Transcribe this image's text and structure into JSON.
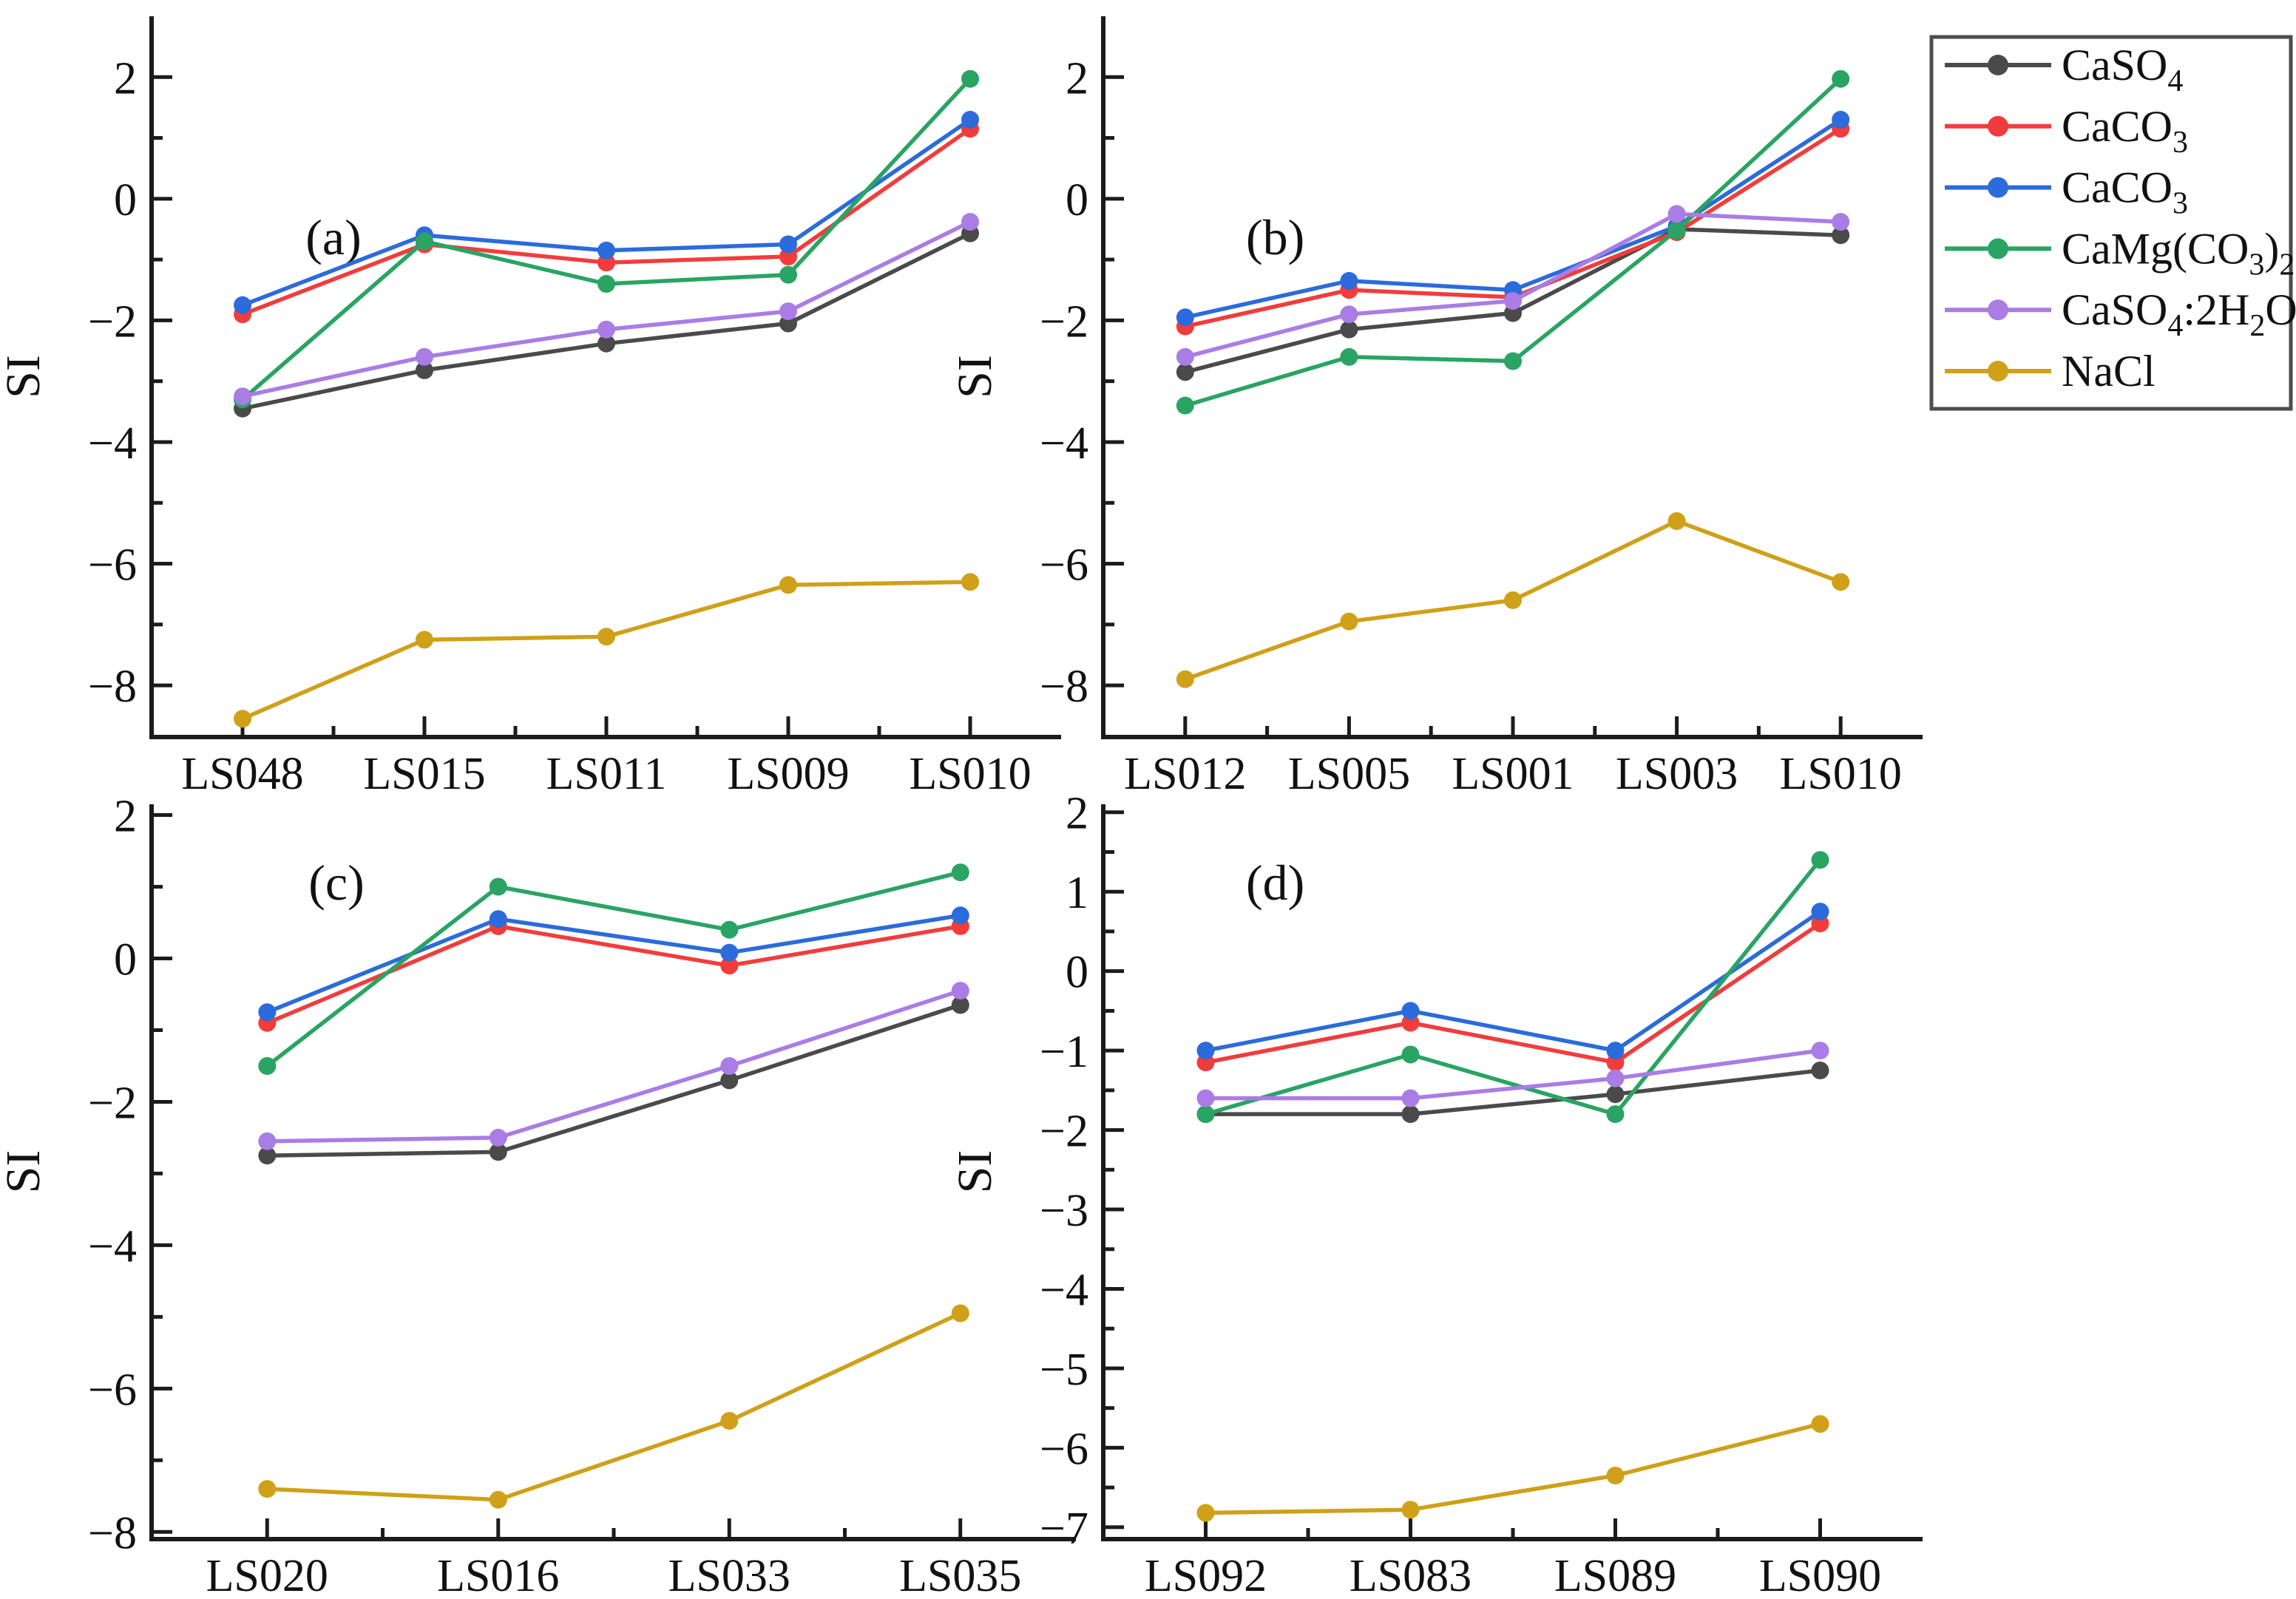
{
  "figure": {
    "background": "#ffffff",
    "axis_color": "#1b1b1b",
    "text_color": "#111111",
    "legend": {
      "border_color": "#4d4d4d",
      "items": [
        {
          "slug": "caso4",
          "label": "CaSO~4~",
          "color": "#4a4a4a"
        },
        {
          "slug": "caco3-red",
          "label": "CaCO~3~",
          "color": "#f23c3c"
        },
        {
          "slug": "caco3-blue",
          "label": "CaCO~3~",
          "color": "#2b6bdb"
        },
        {
          "slug": "camg-co3-2",
          "label": "CaMg(CO~3~)~2~",
          "color": "#29a463"
        },
        {
          "slug": "caso4-2h2o",
          "label": "CaSO~4~:2H~2~O",
          "color": "#aa7ce5"
        },
        {
          "slug": "nacl",
          "label": "NaCl",
          "color": "#cfa018"
        }
      ],
      "position": "top-right-outside"
    }
  },
  "chart_data": [
    {
      "type": "line",
      "id": "a",
      "panel_label": "(a)",
      "ylabel": "SI",
      "categories": [
        "LS048",
        "LS015",
        "LS011",
        "LS009",
        "LS010"
      ],
      "ylim": [
        -8.85,
        3.0
      ],
      "ytick_major": [
        2,
        0,
        -2,
        -4,
        -6,
        -8
      ],
      "ytick_minor": [
        1,
        -1,
        -3,
        -5,
        -7
      ],
      "grid": false,
      "series": [
        {
          "name": "CaSO~4~",
          "slug": "caso4",
          "values": [
            -3.45,
            -2.82,
            -2.38,
            -2.05,
            -0.57
          ]
        },
        {
          "name": "CaCO~3~",
          "slug": "caco3-red",
          "values": [
            -1.9,
            -0.75,
            -1.05,
            -0.95,
            1.15
          ]
        },
        {
          "name": "CaCO~3~",
          "slug": "caco3-blue",
          "values": [
            -1.75,
            -0.6,
            -0.85,
            -0.75,
            1.3
          ]
        },
        {
          "name": "CaMg(CO~3~)~2~",
          "slug": "camg-co3-2",
          "values": [
            -3.3,
            -0.7,
            -1.4,
            -1.25,
            1.97
          ]
        },
        {
          "name": "CaSO~4~:2H~2~O",
          "slug": "caso4-2h2o",
          "values": [
            -3.25,
            -2.6,
            -2.15,
            -1.85,
            -0.38
          ]
        },
        {
          "name": "NaCl",
          "slug": "nacl",
          "values": [
            -8.55,
            -7.25,
            -7.2,
            -6.35,
            -6.3
          ]
        }
      ]
    },
    {
      "type": "line",
      "id": "b",
      "panel_label": "(b)",
      "ylabel": "SI",
      "categories": [
        "LS012",
        "LS005",
        "LS001",
        "LS003",
        "LS010"
      ],
      "ylim": [
        -8.85,
        3.0
      ],
      "ytick_major": [
        2,
        0,
        -2,
        -4,
        -6,
        -8
      ],
      "ytick_minor": [
        1,
        -1,
        -3,
        -5,
        -7
      ],
      "grid": false,
      "series": [
        {
          "name": "CaSO~4~",
          "slug": "caso4",
          "values": [
            -2.85,
            -2.15,
            -1.88,
            -0.5,
            -0.6
          ]
        },
        {
          "name": "CaCO~3~",
          "slug": "caco3-red",
          "values": [
            -2.1,
            -1.5,
            -1.62,
            -0.55,
            1.15
          ]
        },
        {
          "name": "CaCO~3~",
          "slug": "caco3-blue",
          "values": [
            -1.95,
            -1.35,
            -1.5,
            -0.45,
            1.3
          ]
        },
        {
          "name": "CaMg(CO~3~)~2~",
          "slug": "camg-co3-2",
          "values": [
            -3.4,
            -2.6,
            -2.67,
            -0.52,
            1.97
          ]
        },
        {
          "name": "CaSO~4~:2H~2~O",
          "slug": "caso4-2h2o",
          "values": [
            -2.6,
            -1.9,
            -1.68,
            -0.25,
            -0.38
          ]
        },
        {
          "name": "NaCl",
          "slug": "nacl",
          "values": [
            -7.9,
            -6.95,
            -6.6,
            -5.3,
            -6.3
          ]
        }
      ]
    },
    {
      "type": "line",
      "id": "c",
      "panel_label": "(c)",
      "ylabel": "SI",
      "categories": [
        "LS020",
        "LS016",
        "LS033",
        "LS035"
      ],
      "ylim": [
        -8.1,
        2.15
      ],
      "ytick_major": [
        2,
        0,
        -2,
        -4,
        -6,
        -8
      ],
      "ytick_minor": [
        1,
        -1,
        -3,
        -5,
        -7
      ],
      "grid": false,
      "series": [
        {
          "name": "CaSO~4~",
          "slug": "caso4",
          "values": [
            -2.75,
            -2.7,
            -1.7,
            -0.65
          ]
        },
        {
          "name": "CaCO~3~",
          "slug": "caco3-red",
          "values": [
            -0.9,
            0.45,
            -0.1,
            0.45
          ]
        },
        {
          "name": "CaCO~3~",
          "slug": "caco3-blue",
          "values": [
            -0.75,
            0.55,
            0.08,
            0.6
          ]
        },
        {
          "name": "CaMg(CO~3~)~2~",
          "slug": "camg-co3-2",
          "values": [
            -1.5,
            1.0,
            0.4,
            1.2
          ]
        },
        {
          "name": "CaSO~4~:2H~2~O",
          "slug": "caso4-2h2o",
          "values": [
            -2.55,
            -2.5,
            -1.5,
            -0.45
          ]
        },
        {
          "name": "NaCl",
          "slug": "nacl",
          "values": [
            -7.4,
            -7.55,
            -6.45,
            -4.95
          ]
        }
      ]
    },
    {
      "type": "line",
      "id": "d",
      "panel_label": "(d)",
      "ylabel": "SI",
      "categories": [
        "LS092",
        "LS083",
        "LS089",
        "LS090"
      ],
      "ylim": [
        -7.15,
        2.1
      ],
      "ytick_major": [
        2,
        1,
        0,
        -1,
        -2,
        -3,
        -4,
        -5,
        -6,
        -7
      ],
      "ytick_minor": [
        1.5,
        0.5,
        -0.5,
        -1.5,
        -2.5,
        -3.5,
        -4.5,
        -5.5,
        -6.5
      ],
      "grid": false,
      "series": [
        {
          "name": "CaSO~4~",
          "slug": "caso4",
          "values": [
            -1.8,
            -1.8,
            -1.55,
            -1.25
          ]
        },
        {
          "name": "CaCO~3~",
          "slug": "caco3-red",
          "values": [
            -1.15,
            -0.65,
            -1.15,
            0.6
          ]
        },
        {
          "name": "CaCO~3~",
          "slug": "caco3-blue",
          "values": [
            -1.0,
            -0.5,
            -1.0,
            0.75
          ]
        },
        {
          "name": "CaMg(CO~3~)~2~",
          "slug": "camg-co3-2",
          "values": [
            -1.8,
            -1.05,
            -1.8,
            1.4
          ]
        },
        {
          "name": "CaSO~4~:2H~2~O",
          "slug": "caso4-2h2o",
          "values": [
            -1.6,
            -1.6,
            -1.35,
            -1.0
          ]
        },
        {
          "name": "NaCl",
          "slug": "nacl",
          "values": [
            -6.82,
            -6.78,
            -6.35,
            -5.7
          ]
        }
      ]
    }
  ]
}
